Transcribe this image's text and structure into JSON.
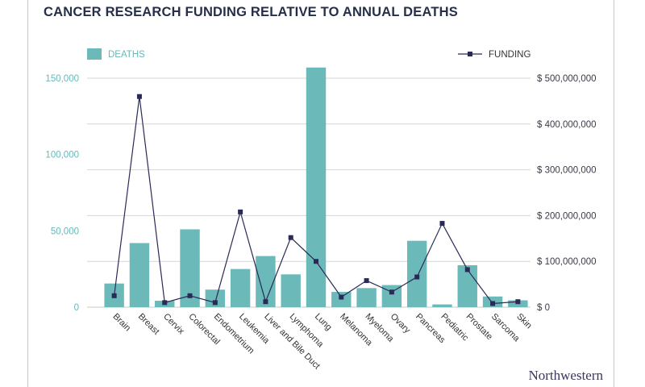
{
  "header": {
    "title": "CANCER RESEARCH FUNDING RELATIVE TO ANNUAL DEATHS"
  },
  "footer": {
    "brand": "Northwestern"
  },
  "chart_data": {
    "type": "bar",
    "title": "CANCER RESEARCH FUNDING RELATIVE TO ANNUAL DEATHS",
    "categories": [
      "Brain",
      "Breast",
      "Cervix",
      "Colorectal",
      "Endometrium",
      "Leukemia",
      "Liver and Bile Duct",
      "Lymphoma",
      "Lung",
      "Melanoma",
      "Myeloma",
      "Ovary",
      "Pancreas",
      "Pediatric",
      "Prostate",
      "Sarcoma",
      "Skin"
    ],
    "series": [
      {
        "name": "DEATHS",
        "type": "bar",
        "axis": "left",
        "color": "#6cb9ba",
        "values": [
          15500,
          42000,
          4200,
          51000,
          11500,
          25000,
          33500,
          21500,
          157000,
          10000,
          12500,
          14500,
          43500,
          1800,
          27500,
          7000,
          4500
        ]
      },
      {
        "name": "FUNDING",
        "type": "line",
        "axis": "right",
        "color": "#2a2a58",
        "values": [
          25000000,
          460000000,
          10000000,
          25000000,
          10000000,
          208000000,
          12000000,
          152000000,
          100000000,
          22000000,
          58000000,
          33000000,
          66000000,
          183000000,
          82000000,
          8000000,
          12000000
        ]
      }
    ],
    "y_left": {
      "ylim": [
        0,
        150000
      ],
      "ticks": [
        0,
        50000,
        100000,
        150000
      ],
      "tick_labels": [
        "0",
        "50,000",
        "100,000",
        "150,000"
      ]
    },
    "y_right": {
      "ylim": [
        0,
        500000000
      ],
      "ticks": [
        0,
        100000000,
        200000000,
        300000000,
        400000000,
        500000000
      ],
      "tick_labels": [
        "$ 0",
        "$ 100,000,000",
        "$ 200,000,000",
        "$ 300,000,000",
        "$ 400,000,000",
        "$ 500,000,000"
      ]
    },
    "grid": true,
    "legend": [
      {
        "label": "DEATHS",
        "placement": "top-left"
      },
      {
        "label": "FUNDING",
        "placement": "top-right"
      }
    ],
    "xlabel": "",
    "ylabel": ""
  }
}
